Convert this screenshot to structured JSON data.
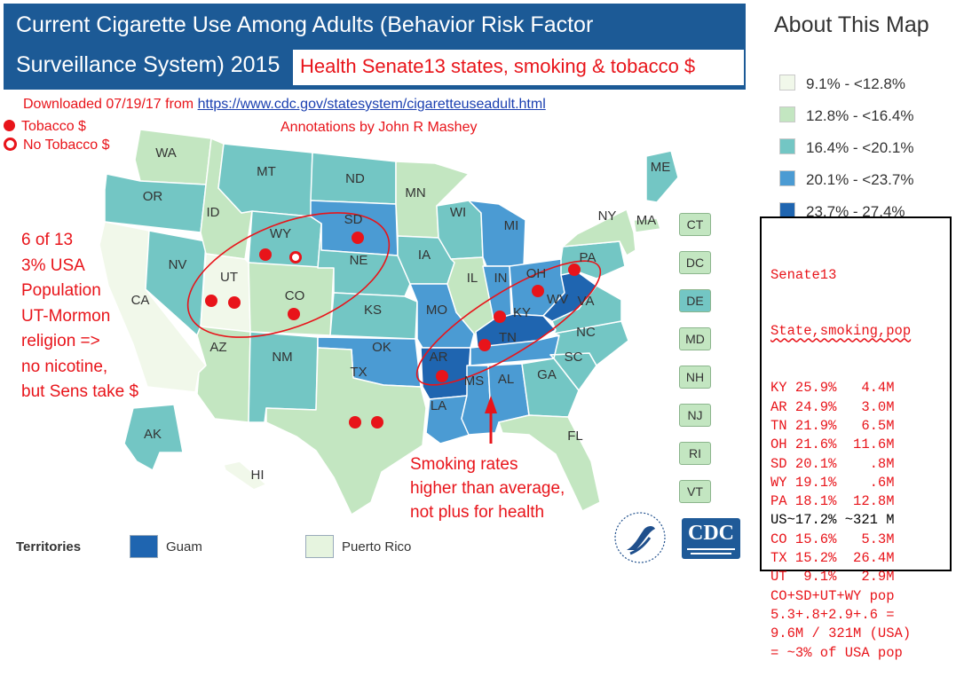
{
  "header": {
    "title_line1": "Current Cigarette Use Among Adults (Behavior Risk Factor",
    "title_line2": "Surveillance System) 2015",
    "annotation_title": "Health Senate13 states, smoking & tobacco $"
  },
  "source": {
    "prefix": "Downloaded 07/19/17 from ",
    "url_text": "https://www.cdc.gov/statesystem/cigaretteuseadult.html",
    "annotated_by": "Annotations by John R Mashey"
  },
  "marker_legend": {
    "tobacco": "Tobacco $",
    "no_tobacco": "No Tobacco $"
  },
  "note_left": [
    "6 of 13",
    "3% USA",
    "Population",
    "UT-Mormon",
    "religion =>",
    "no nicotine,",
    "but Sens take $"
  ],
  "note_bottom": [
    "Smoking rates",
    "higher than average,",
    "not plus for health"
  ],
  "legend": {
    "title": "About This Map",
    "bins": [
      {
        "label": "9.1% - <12.8%",
        "color": "#f1f8ea"
      },
      {
        "label": "12.8% - <16.4%",
        "color": "#c3e6c1"
      },
      {
        "label": "16.4% - <20.1%",
        "color": "#73c6c4"
      },
      {
        "label": "20.1% - <23.7%",
        "color": "#4b9bd3"
      },
      {
        "label": "23.7% - 27.4%",
        "color": "#1f65b0"
      }
    ]
  },
  "senate_table": {
    "header1": "Senate13",
    "header2": "State,smoking,pop",
    "rows": [
      "KY 25.9%   4.4M",
      "AR 24.9%   3.0M",
      "TN 21.9%   6.5M",
      "OH 21.6%  11.6M",
      "SD 20.1%    .8M",
      "WY 19.1%    .6M",
      "PA 18.1%  12.8M",
      "US~17.2% ~321 M",
      "CO 15.6%   5.3M",
      "TX 15.2%  26.4M",
      "UT  9.1%   2.9M",
      "CO+SD+UT+WY pop",
      "5.3+.8+2.9+.6 =",
      "9.6M / 321M (USA)",
      "= ~3% of USA pop"
    ]
  },
  "states": [
    {
      "abbr": "WA",
      "color": "#c3e6c1"
    },
    {
      "abbr": "OR",
      "color": "#73c6c4"
    },
    {
      "abbr": "CA",
      "color": "#f1f8ea"
    },
    {
      "abbr": "NV",
      "color": "#73c6c4"
    },
    {
      "abbr": "ID",
      "color": "#c3e6c1"
    },
    {
      "abbr": "MT",
      "color": "#73c6c4"
    },
    {
      "abbr": "WY",
      "color": "#73c6c4"
    },
    {
      "abbr": "UT",
      "color": "#f1f8ea"
    },
    {
      "abbr": "CO",
      "color": "#c3e6c1"
    },
    {
      "abbr": "AZ",
      "color": "#c3e6c1"
    },
    {
      "abbr": "NM",
      "color": "#73c6c4"
    },
    {
      "abbr": "ND",
      "color": "#73c6c4"
    },
    {
      "abbr": "SD",
      "color": "#4b9bd3"
    },
    {
      "abbr": "NE",
      "color": "#73c6c4"
    },
    {
      "abbr": "KS",
      "color": "#73c6c4"
    },
    {
      "abbr": "OK",
      "color": "#4b9bd3"
    },
    {
      "abbr": "TX",
      "color": "#c3e6c1"
    },
    {
      "abbr": "MN",
      "color": "#c3e6c1"
    },
    {
      "abbr": "IA",
      "color": "#73c6c4"
    },
    {
      "abbr": "MO",
      "color": "#4b9bd3"
    },
    {
      "abbr": "AR",
      "color": "#1f65b0"
    },
    {
      "abbr": "LA",
      "color": "#4b9bd3"
    },
    {
      "abbr": "WI",
      "color": "#73c6c4"
    },
    {
      "abbr": "IL",
      "color": "#c3e6c1"
    },
    {
      "abbr": "MI",
      "color": "#4b9bd3"
    },
    {
      "abbr": "IN",
      "color": "#4b9bd3"
    },
    {
      "abbr": "OH",
      "color": "#4b9bd3"
    },
    {
      "abbr": "KY",
      "color": "#1f65b0"
    },
    {
      "abbr": "TN",
      "color": "#4b9bd3"
    },
    {
      "abbr": "MS",
      "color": "#4b9bd3"
    },
    {
      "abbr": "AL",
      "color": "#4b9bd3"
    },
    {
      "abbr": "GA",
      "color": "#73c6c4"
    },
    {
      "abbr": "FL",
      "color": "#c3e6c1"
    },
    {
      "abbr": "SC",
      "color": "#73c6c4"
    },
    {
      "abbr": "NC",
      "color": "#73c6c4"
    },
    {
      "abbr": "VA",
      "color": "#73c6c4"
    },
    {
      "abbr": "WV",
      "color": "#1f65b0"
    },
    {
      "abbr": "PA",
      "color": "#73c6c4"
    },
    {
      "abbr": "NY",
      "color": "#c3e6c1"
    },
    {
      "abbr": "MA",
      "color": "#c3e6c1"
    },
    {
      "abbr": "ME",
      "color": "#73c6c4"
    },
    {
      "abbr": "AK",
      "color": "#73c6c4"
    },
    {
      "abbr": "HI",
      "color": "#f1f8ea"
    }
  ],
  "small_states": [
    {
      "abbr": "CT",
      "color": "#c3e6c1"
    },
    {
      "abbr": "DC",
      "color": "#c3e6c1"
    },
    {
      "abbr": "DE",
      "color": "#73c6c4"
    },
    {
      "abbr": "MD",
      "color": "#c3e6c1"
    },
    {
      "abbr": "NH",
      "color": "#c3e6c1"
    },
    {
      "abbr": "NJ",
      "color": "#c3e6c1"
    },
    {
      "abbr": "RI",
      "color": "#c3e6c1"
    },
    {
      "abbr": "VT",
      "color": "#c3e6c1"
    }
  ],
  "territories": {
    "label": "Territories",
    "items": [
      {
        "name": "Guam",
        "color": "#1f65b0"
      },
      {
        "name": "Puerto Rico",
        "color": "#e6f4df"
      }
    ]
  },
  "logos": {
    "cdc": "CDC"
  },
  "colors": {
    "header_bg": "#1c5a96",
    "annotation_red": "#e8141a"
  }
}
